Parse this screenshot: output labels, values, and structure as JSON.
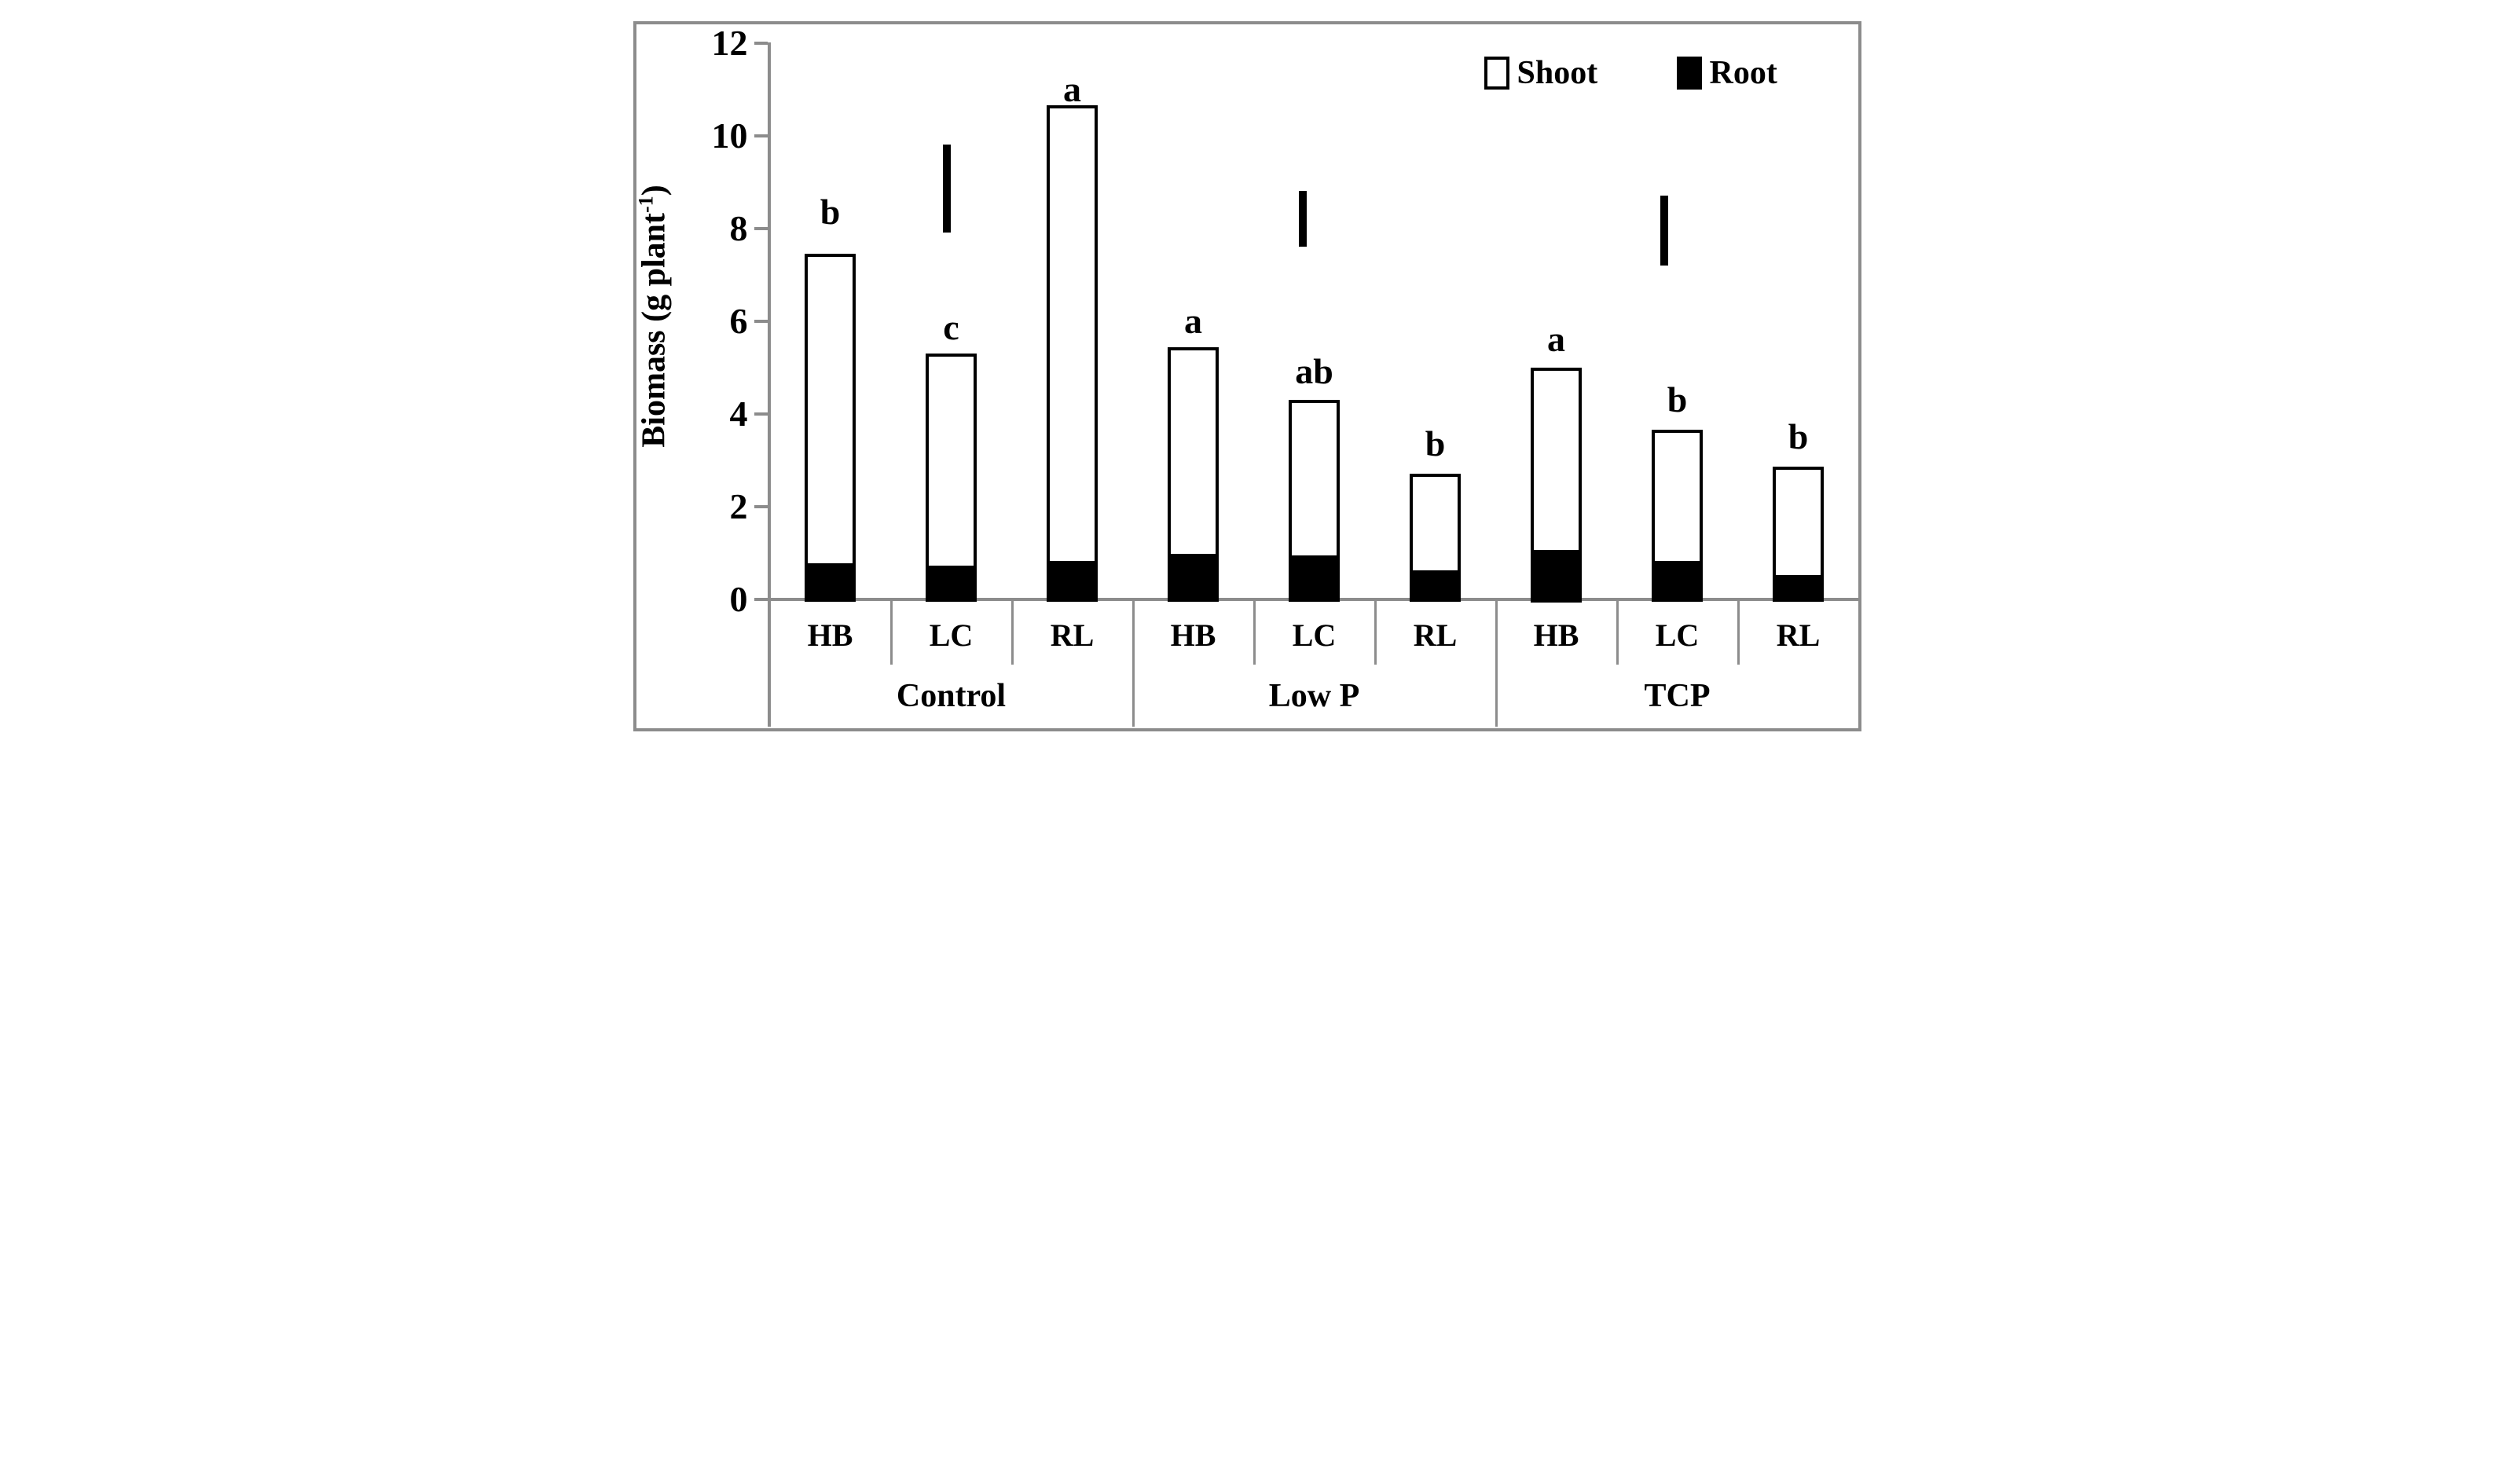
{
  "figure": {
    "ylabel_prefix": "Biomass (g plant",
    "ylabel_sup": "-1",
    "ylabel_suffix": ")"
  },
  "chart_data": {
    "type": "bar",
    "stacked": true,
    "title": "",
    "ylabel": "Biomass (g plant^-1)",
    "xlabel": "",
    "ylim": [
      0,
      12
    ],
    "yticks": [
      0,
      2,
      4,
      6,
      8,
      10,
      12
    ],
    "grid": false,
    "legend_position": "top-right",
    "legend": [
      {
        "label": "Shoot",
        "fill": "#ffffff"
      },
      {
        "label": "Root",
        "fill": "#000000"
      }
    ],
    "groups": [
      {
        "label": "Control",
        "bars": [
          {
            "genotype": "HB",
            "shoot": 6.65,
            "root": 0.8,
            "total": 7.45,
            "letter": "b",
            "letter_y": 8.35
          },
          {
            "genotype": "LC",
            "shoot": 4.55,
            "root": 0.75,
            "total": 5.3,
            "letter": "c",
            "letter_y": 5.85
          },
          {
            "genotype": "RL",
            "shoot": 9.8,
            "root": 0.85,
            "total": 10.65,
            "letter": "a",
            "letter_y": 11.0
          }
        ],
        "error_bar": {
          "low": 7.9,
          "high": 9.8,
          "x_frac": 0.488
        }
      },
      {
        "label": "Low P",
        "bars": [
          {
            "genotype": "HB",
            "shoot": 4.44,
            "root": 1.0,
            "total": 5.44,
            "letter": "a",
            "letter_y": 6.0
          },
          {
            "genotype": "LC",
            "shoot": 3.32,
            "root": 0.97,
            "total": 4.29,
            "letter": "ab",
            "letter_y": 4.9
          },
          {
            "genotype": "RL",
            "shoot": 2.04,
            "root": 0.66,
            "total": 2.7,
            "letter": "b",
            "letter_y": 3.35
          }
        ],
        "error_bar": {
          "low": 7.6,
          "high": 8.8,
          "x_frac": 0.468
        }
      },
      {
        "label": "TCP",
        "bars": [
          {
            "genotype": "HB",
            "shoot": 3.9,
            "root": 1.1,
            "total": 5.0,
            "letter": "a",
            "letter_y": 5.6
          },
          {
            "genotype": "LC",
            "shoot": 2.8,
            "root": 0.85,
            "total": 3.65,
            "letter": "b",
            "letter_y": 4.3
          },
          {
            "genotype": "RL",
            "shoot": 2.3,
            "root": 0.55,
            "total": 2.85,
            "letter": "b",
            "letter_y": 3.5
          }
        ],
        "error_bar": {
          "low": 7.2,
          "high": 8.7,
          "x_frac": 0.465
        }
      }
    ],
    "colors": {
      "axis": "#8c8c8c",
      "bar_border": "#000000",
      "shoot_fill": "#ffffff",
      "root_fill": "#000000",
      "text": "#000000"
    }
  }
}
